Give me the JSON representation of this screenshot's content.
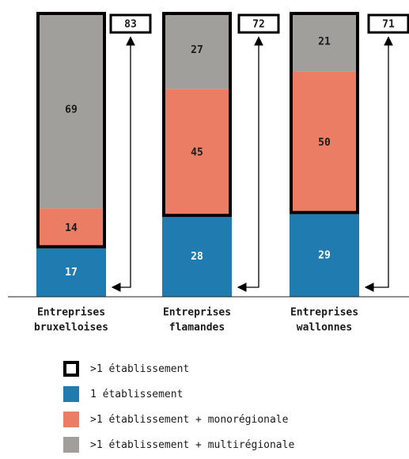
{
  "colors": {
    "blue": "#1f7bb0",
    "orange": "#eb7d64",
    "grey": "#a09f9b",
    "outline": "#000000"
  },
  "chart_data": {
    "type": "bar",
    "stacked": true,
    "categories": [
      [
        "Entreprises",
        "bruxelloises"
      ],
      [
        "Entreprises",
        "flamandes"
      ],
      [
        "Entreprises",
        "wallonnes"
      ]
    ],
    "series": [
      {
        "key": "s1",
        "values": [
          17,
          28,
          29
        ],
        "color": "#1f7bb0"
      },
      {
        "key": "s2",
        "values": [
          14,
          45,
          50
        ],
        "color": "#eb7d64"
      },
      {
        "key": "s3",
        "values": [
          69,
          27,
          21
        ],
        "color": "#a09f9b"
      }
    ],
    "totals_multi": [
      83,
      72,
      71
    ],
    "ylim": [
      0,
      100
    ],
    "grid": false
  },
  "legend": [
    {
      "key": "total",
      "label": ">1 établissement",
      "swatch": "outline"
    },
    {
      "key": "s1",
      "label": " 1 établissement",
      "swatch": "#1f7bb0"
    },
    {
      "key": "s2",
      "label": ">1 établissement + monorégionale",
      "swatch": "#eb7d64"
    },
    {
      "key": "s3",
      "label": ">1 établissement + multirégionale",
      "swatch": "#a09f9b"
    }
  ]
}
